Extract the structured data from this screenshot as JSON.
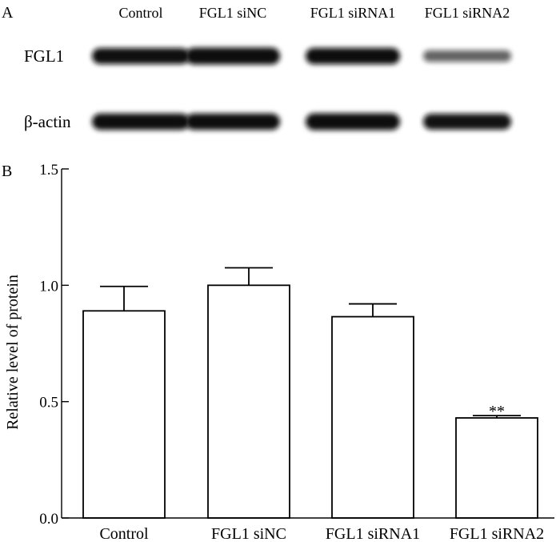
{
  "panel_a": {
    "letter": "A",
    "lanes": [
      "Control",
      "FGL1 siNC",
      "FGL1 siRNA1",
      "FGL1 siRNA2"
    ],
    "rows": [
      {
        "label": "FGL1",
        "intensities": [
          0.92,
          1.0,
          0.93,
          0.45
        ]
      },
      {
        "label": "β-actin",
        "intensities": [
          0.95,
          0.95,
          1.0,
          0.9
        ]
      }
    ],
    "band_color": "#0e0e0e"
  },
  "panel_b": {
    "letter": "B"
  },
  "chart_data": {
    "type": "bar",
    "categories": [
      "Control",
      "FGL1 siNC",
      "FGL1 siRNA1",
      "FGL1 siRNA2"
    ],
    "series": [
      {
        "values": [
          0.89,
          1.0,
          0.865,
          0.43
        ],
        "errors": [
          0.105,
          0.075,
          0.055,
          0.01
        ]
      }
    ],
    "annotations": [
      "",
      "",
      "",
      "**"
    ],
    "xlabel": "",
    "ylabel": "Relative level of protein",
    "ylim": [
      0.0,
      1.5
    ],
    "yticks": [
      0.0,
      0.5,
      1.0,
      1.5
    ],
    "ytick_labels": [
      "0.0",
      "0.5",
      "1.0",
      "1.5"
    ],
    "grid": false,
    "bar_fill": "#ffffff",
    "bar_stroke": "#000000"
  }
}
